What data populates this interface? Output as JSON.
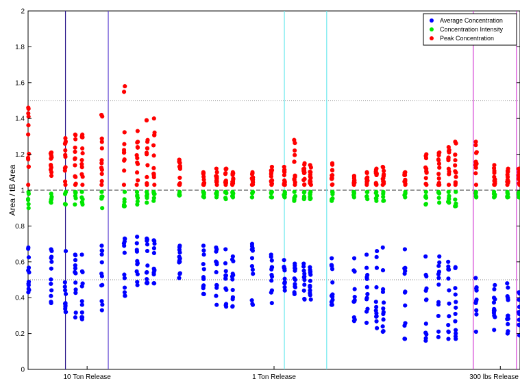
{
  "chart_data": {
    "type": "scatter",
    "title": "",
    "xlabel": "",
    "ylabel": "Area / tB Area",
    "ylim": [
      0,
      2
    ],
    "xlim": [
      0,
      100
    ],
    "yticks": [
      "0",
      "0.2",
      "0.4",
      "0.6",
      "0.8",
      "1",
      "1.2",
      "1.4",
      "1.6",
      "1.8",
      "2"
    ],
    "xtick_labels": [
      {
        "x": 12,
        "label": "10 Ton Release"
      },
      {
        "x": 50,
        "label": "1 Ton Release"
      },
      {
        "x": 96,
        "label": "300 lbs Release"
      }
    ],
    "reference_lines": {
      "dashed": 1.0,
      "dotted": [
        0.5,
        1.5
      ]
    },
    "vertical_lines": [
      {
        "x": 7.6,
        "color": "#2e1a8c"
      },
      {
        "x": 16.3,
        "color": "#5a3fd1"
      },
      {
        "x": 52.1,
        "color": "#6ee8ee"
      },
      {
        "x": 60.7,
        "color": "#6ee8ee"
      },
      {
        "x": 90.5,
        "color": "#d23ad2"
      },
      {
        "x": 99.3,
        "color": "#d23ad2"
      }
    ],
    "legend": {
      "placement": "top-right",
      "entries": [
        {
          "name": "Average Concentration",
          "color": "#0000ff"
        },
        {
          "name": "Concentration Intensity",
          "color": "#00e600"
        },
        {
          "name": "Peak Concentration",
          "color": "#ff0000"
        }
      ]
    },
    "columns": [
      {
        "x": 0.1,
        "avg": [
          0.43,
          0.68
        ],
        "int": [
          0.9,
          0.99
        ],
        "peak": [
          1.03,
          1.46
        ]
      },
      {
        "x": 4.7,
        "avg": [
          0.37,
          0.67
        ],
        "int": [
          0.93,
          0.98
        ],
        "peak": [
          1.08,
          1.21
        ]
      },
      {
        "x": 7.6,
        "avg": [
          0.32,
          0.66
        ],
        "int": [
          0.92,
          0.99
        ],
        "peak": [
          1.03,
          1.29
        ]
      },
      {
        "x": 9.6,
        "avg": [
          0.29,
          0.64
        ],
        "int": [
          0.92,
          0.99
        ],
        "peak": [
          1.03,
          1.31
        ]
      },
      {
        "x": 11.0,
        "avg": [
          0.28,
          0.64
        ],
        "int": [
          0.92,
          0.99
        ],
        "peak": [
          1.03,
          1.31
        ]
      },
      {
        "x": 15.0,
        "avg": [
          0.33,
          0.69
        ],
        "int": [
          0.9,
          0.99
        ],
        "peak": [
          1.03,
          1.42
        ]
      },
      {
        "x": 19.6,
        "avg": [
          0.41,
          0.73
        ],
        "int": [
          0.91,
          0.99
        ],
        "peak": [
          1.03,
          1.58
        ]
      },
      {
        "x": 22.2,
        "avg": [
          0.47,
          0.74
        ],
        "int": [
          0.92,
          0.99
        ],
        "peak": [
          1.03,
          1.33
        ]
      },
      {
        "x": 24.2,
        "avg": [
          0.48,
          0.73
        ],
        "int": [
          0.93,
          0.99
        ],
        "peak": [
          1.03,
          1.39
        ]
      },
      {
        "x": 25.6,
        "avg": [
          0.48,
          0.72
        ],
        "int": [
          0.94,
          0.99
        ],
        "peak": [
          1.03,
          1.4
        ]
      },
      {
        "x": 30.8,
        "avg": [
          0.51,
          0.69
        ],
        "int": [
          0.97,
          0.99
        ],
        "peak": [
          1.03,
          1.17
        ]
      },
      {
        "x": 35.7,
        "avg": [
          0.42,
          0.69
        ],
        "int": [
          0.96,
          0.99
        ],
        "peak": [
          1.03,
          1.1
        ]
      },
      {
        "x": 38.3,
        "avg": [
          0.36,
          0.68
        ],
        "int": [
          0.96,
          0.99
        ],
        "peak": [
          1.03,
          1.12
        ]
      },
      {
        "x": 40.2,
        "avg": [
          0.35,
          0.67
        ],
        "int": [
          0.95,
          0.99
        ],
        "peak": [
          1.03,
          1.12
        ]
      },
      {
        "x": 41.6,
        "avg": [
          0.35,
          0.63
        ],
        "int": [
          0.96,
          0.99
        ],
        "peak": [
          1.03,
          1.1
        ]
      },
      {
        "x": 45.6,
        "avg": [
          0.36,
          0.7
        ],
        "int": [
          0.96,
          0.99
        ],
        "peak": [
          1.03,
          1.1
        ]
      },
      {
        "x": 49.5,
        "avg": [
          0.37,
          0.64
        ],
        "int": [
          0.96,
          0.99
        ],
        "peak": [
          1.03,
          1.13
        ]
      },
      {
        "x": 52.1,
        "avg": [
          0.44,
          0.61
        ],
        "int": [
          0.96,
          0.99
        ],
        "peak": [
          1.03,
          1.13
        ]
      },
      {
        "x": 54.2,
        "avg": [
          0.42,
          0.59
        ],
        "int": [
          0.94,
          0.99
        ],
        "peak": [
          1.03,
          1.28
        ]
      },
      {
        "x": 56.1,
        "avg": [
          0.39,
          0.59
        ],
        "int": [
          0.95,
          0.99
        ],
        "peak": [
          1.03,
          1.15
        ]
      },
      {
        "x": 57.4,
        "avg": [
          0.39,
          0.57
        ],
        "int": [
          0.95,
          0.99
        ],
        "peak": [
          1.03,
          1.14
        ]
      },
      {
        "x": 61.8,
        "avg": [
          0.36,
          0.62
        ],
        "int": [
          0.94,
          0.99
        ],
        "peak": [
          1.03,
          1.15
        ]
      },
      {
        "x": 66.3,
        "avg": [
          0.27,
          0.62
        ],
        "int": [
          0.96,
          0.99
        ],
        "peak": [
          1.03,
          1.08
        ]
      },
      {
        "x": 68.9,
        "avg": [
          0.26,
          0.64
        ],
        "int": [
          0.95,
          0.99
        ],
        "peak": [
          1.03,
          1.1
        ]
      },
      {
        "x": 70.8,
        "avg": [
          0.23,
          0.66
        ],
        "int": [
          0.94,
          0.99
        ],
        "peak": [
          1.03,
          1.12
        ]
      },
      {
        "x": 72.2,
        "avg": [
          0.21,
          0.68
        ],
        "int": [
          0.94,
          0.99
        ],
        "peak": [
          1.03,
          1.13
        ]
      },
      {
        "x": 76.6,
        "avg": [
          0.17,
          0.67
        ],
        "int": [
          0.96,
          0.99
        ],
        "peak": [
          1.03,
          1.1
        ]
      },
      {
        "x": 80.9,
        "avg": [
          0.16,
          0.63
        ],
        "int": [
          0.92,
          0.99
        ],
        "peak": [
          1.03,
          1.2
        ]
      },
      {
        "x": 83.5,
        "avg": [
          0.18,
          0.63
        ],
        "int": [
          0.93,
          0.99
        ],
        "peak": [
          1.03,
          1.21
        ]
      },
      {
        "x": 85.5,
        "avg": [
          0.17,
          0.6
        ],
        "int": [
          0.93,
          0.99
        ],
        "peak": [
          1.03,
          1.24
        ]
      },
      {
        "x": 86.9,
        "avg": [
          0.17,
          0.57
        ],
        "int": [
          0.91,
          0.99
        ],
        "peak": [
          1.03,
          1.27
        ]
      },
      {
        "x": 91.1,
        "avg": [
          0.21,
          0.51
        ],
        "int": [
          0.96,
          0.99
        ],
        "peak": [
          1.03,
          1.27
        ]
      },
      {
        "x": 94.8,
        "avg": [
          0.22,
          0.47
        ],
        "int": [
          0.96,
          0.99
        ],
        "peak": [
          1.03,
          1.14
        ]
      },
      {
        "x": 97.5,
        "avg": [
          0.2,
          0.48
        ],
        "int": [
          0.96,
          0.99
        ],
        "peak": [
          1.03,
          1.12
        ]
      },
      {
        "x": 99.8,
        "avg": [
          0.19,
          0.43
        ],
        "int": [
          0.96,
          0.99
        ],
        "peak": [
          1.03,
          1.12
        ]
      }
    ]
  }
}
